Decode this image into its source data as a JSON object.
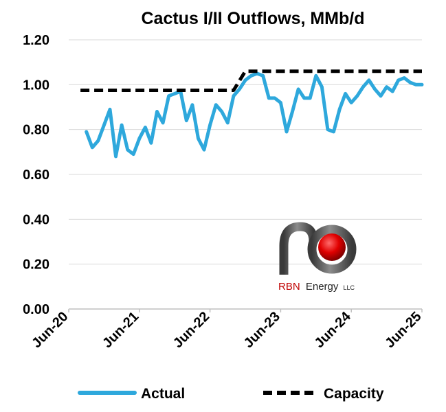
{
  "chart_data": {
    "type": "line",
    "title": "Cactus I/II Outflows, MMb/d",
    "xlabel": "",
    "ylabel": "",
    "ylim": [
      0,
      1.2
    ],
    "yticks": [
      "0.00",
      "0.20",
      "0.40",
      "0.60",
      "0.80",
      "1.00",
      "1.20"
    ],
    "xticks": [
      "Jun-20",
      "Jun-21",
      "Jun-22",
      "Jun-23",
      "Jun-24",
      "Jun-25"
    ],
    "xlim": [
      "2020-06",
      "2025-06"
    ],
    "grid": true,
    "legend_position": "bottom",
    "colors": {
      "actual": "#2ea8dc",
      "capacity": "#000000"
    },
    "series": [
      {
        "name": "Actual",
        "style": "solid",
        "x": [
          "2020-09",
          "2020-10",
          "2020-11",
          "2020-12",
          "2021-01",
          "2021-02",
          "2021-03",
          "2021-04",
          "2021-05",
          "2021-06",
          "2021-07",
          "2021-08",
          "2021-09",
          "2021-10",
          "2021-11",
          "2021-12",
          "2022-01",
          "2022-02",
          "2022-03",
          "2022-04",
          "2022-05",
          "2022-06",
          "2022-07",
          "2022-08",
          "2022-09",
          "2022-10",
          "2022-11",
          "2022-12",
          "2023-01",
          "2023-02",
          "2023-03",
          "2023-04",
          "2023-05",
          "2023-06",
          "2023-07",
          "2023-08",
          "2023-09",
          "2023-10",
          "2023-11",
          "2023-12",
          "2024-01",
          "2024-02",
          "2024-03",
          "2024-04",
          "2024-05",
          "2024-06",
          "2024-07",
          "2024-08",
          "2024-09",
          "2024-10",
          "2024-11",
          "2024-12",
          "2025-01",
          "2025-02",
          "2025-03",
          "2025-04",
          "2025-05",
          "2025-06"
        ],
        "values": [
          0.79,
          0.72,
          0.75,
          0.82,
          0.89,
          0.68,
          0.82,
          0.71,
          0.69,
          0.76,
          0.81,
          0.74,
          0.88,
          0.83,
          0.95,
          0.96,
          0.97,
          0.84,
          0.91,
          0.76,
          0.71,
          0.82,
          0.91,
          0.88,
          0.83,
          0.95,
          0.98,
          1.02,
          1.04,
          1.05,
          1.04,
          0.94,
          0.94,
          0.92,
          0.79,
          0.88,
          0.98,
          0.94,
          0.94,
          1.04,
          0.99,
          0.8,
          0.79,
          0.89,
          0.96,
          0.92,
          0.95,
          0.99,
          1.02,
          0.98,
          0.95,
          0.99,
          0.97,
          1.02,
          1.03,
          1.01,
          1.0,
          1.0
        ]
      },
      {
        "name": "Capacity",
        "style": "dashed",
        "x": [
          "2020-08",
          "2022-10",
          "2022-12",
          "2023-01",
          "2025-06"
        ],
        "values": [
          0.975,
          0.975,
          1.06,
          1.06,
          1.06
        ]
      }
    ]
  },
  "logo": {
    "text_primary": "RBN",
    "text_secondary": "Energy",
    "suffix": "LLC"
  }
}
